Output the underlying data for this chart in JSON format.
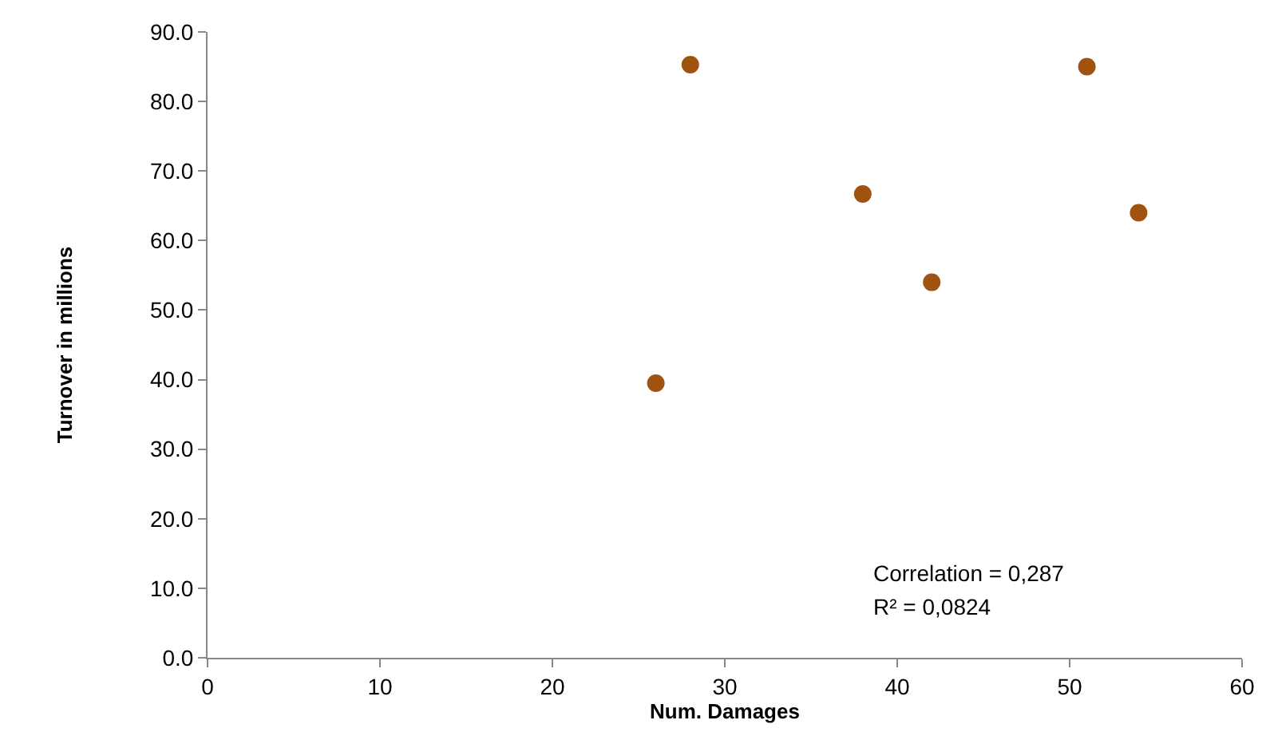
{
  "chart_data": {
    "type": "scatter",
    "xlabel": "Num. Damages",
    "ylabel": "Turnover in millions",
    "x": [
      26,
      28,
      38,
      42,
      51,
      54
    ],
    "series": [
      {
        "color": "#a0520f",
        "values": [
          39.5,
          85.3,
          66.7,
          54.0,
          85.0,
          64.0
        ]
      }
    ],
    "xlim": [
      0,
      60
    ],
    "xticks": [
      0,
      10,
      20,
      30,
      40,
      50,
      60
    ],
    "ylim": [
      0,
      90
    ],
    "yticks": [
      {
        "value": 0,
        "label": "0.0"
      },
      {
        "value": 10,
        "label": "10.0"
      },
      {
        "value": 20,
        "label": "20.0"
      },
      {
        "value": 30,
        "label": "30.0"
      },
      {
        "value": 40,
        "label": "40.0"
      },
      {
        "value": 50,
        "label": "50.0"
      },
      {
        "value": 60,
        "label": "60.0"
      },
      {
        "value": 70,
        "label": "70.0"
      },
      {
        "value": 80,
        "label": "80.0"
      },
      {
        "value": 90,
        "label": "90.0"
      }
    ],
    "legend": false,
    "marker": "circle",
    "annotations": [
      "Correlation = 0,287",
      "R² = 0,0824"
    ]
  }
}
